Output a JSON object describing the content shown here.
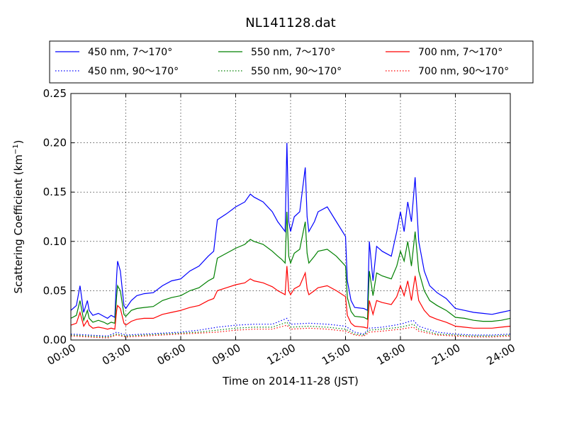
{
  "chart_data": {
    "type": "line",
    "title": "NL141128.dat",
    "xlabel": "Time on 2014-11-28 (JST)",
    "ylabel": "Scattering Coefficient (km",
    "ylabel_sup": "−1",
    "ylabel_close": ")",
    "xlim": [
      0,
      24
    ],
    "ylim": [
      0,
      0.25
    ],
    "grid": true,
    "legend_placement": "top",
    "x_ticks": [
      0,
      3,
      6,
      9,
      12,
      15,
      18,
      21,
      24
    ],
    "x_tick_labels": [
      "00:00",
      "03:00",
      "06:00",
      "09:00",
      "12:00",
      "15:00",
      "18:00",
      "21:00",
      "24:00"
    ],
    "y_ticks": [
      0,
      0.05,
      0.1,
      0.15,
      0.2,
      0.25
    ],
    "y_tick_labels": [
      "0.00",
      "0.05",
      "0.10",
      "0.15",
      "0.20",
      "0.25"
    ],
    "x_units": "hours",
    "series": [
      {
        "name": "450 nm, 7～170°",
        "color": "#0000ff",
        "style": "solid",
        "x": [
          0,
          0.3,
          0.5,
          0.7,
          0.9,
          1.0,
          1.2,
          1.5,
          1.8,
          2.0,
          2.2,
          2.4,
          2.5,
          2.55,
          2.7,
          2.9,
          3.0,
          3.3,
          3.6,
          4.0,
          4.5,
          5.0,
          5.5,
          6.0,
          6.5,
          7.0,
          7.5,
          7.8,
          8.0,
          8.5,
          9.0,
          9.5,
          9.8,
          10.0,
          10.5,
          11.0,
          11.3,
          11.5,
          11.7,
          11.8,
          11.9,
          12.0,
          12.2,
          12.5,
          12.8,
          12.9,
          13.0,
          13.3,
          13.5,
          14.0,
          14.5,
          15.0,
          15.1,
          15.3,
          15.5,
          16.0,
          16.2,
          16.3,
          16.5,
          16.7,
          17.0,
          17.5,
          17.8,
          18.0,
          18.2,
          18.4,
          18.6,
          18.8,
          19.0,
          19.3,
          19.6,
          20.0,
          20.5,
          21.0,
          21.5,
          22.0,
          22.5,
          23.0,
          23.5,
          24.0
        ],
        "values": [
          0.03,
          0.035,
          0.055,
          0.028,
          0.04,
          0.03,
          0.025,
          0.027,
          0.024,
          0.022,
          0.025,
          0.023,
          0.065,
          0.08,
          0.07,
          0.035,
          0.032,
          0.04,
          0.045,
          0.047,
          0.048,
          0.055,
          0.06,
          0.062,
          0.07,
          0.075,
          0.085,
          0.09,
          0.122,
          0.128,
          0.135,
          0.14,
          0.148,
          0.145,
          0.14,
          0.13,
          0.12,
          0.115,
          0.11,
          0.2,
          0.12,
          0.11,
          0.125,
          0.13,
          0.175,
          0.125,
          0.11,
          0.12,
          0.13,
          0.135,
          0.12,
          0.105,
          0.06,
          0.04,
          0.033,
          0.032,
          0.03,
          0.1,
          0.06,
          0.095,
          0.09,
          0.085,
          0.11,
          0.13,
          0.11,
          0.14,
          0.12,
          0.165,
          0.1,
          0.07,
          0.055,
          0.048,
          0.042,
          0.032,
          0.03,
          0.028,
          0.027,
          0.026,
          0.028,
          0.03
        ]
      },
      {
        "name": "450 nm, 90～170°",
        "color": "#0000ff",
        "style": "dotted",
        "x": [
          0,
          1,
          2,
          2.5,
          3,
          4,
          5,
          6,
          7,
          8,
          9,
          10,
          11,
          11.8,
          12,
          13,
          14,
          15,
          15.5,
          16,
          16.3,
          17,
          18,
          18.7,
          19,
          20,
          21,
          22,
          23,
          24
        ],
        "values": [
          0.006,
          0.005,
          0.004,
          0.008,
          0.005,
          0.006,
          0.007,
          0.008,
          0.01,
          0.013,
          0.015,
          0.016,
          0.016,
          0.022,
          0.016,
          0.017,
          0.016,
          0.014,
          0.008,
          0.006,
          0.012,
          0.013,
          0.016,
          0.02,
          0.014,
          0.008,
          0.006,
          0.005,
          0.005,
          0.006
        ]
      },
      {
        "name": "550 nm, 7～170°",
        "color": "#008000",
        "style": "solid",
        "x": [
          0,
          0.3,
          0.5,
          0.7,
          0.9,
          1.0,
          1.2,
          1.5,
          1.8,
          2.0,
          2.2,
          2.4,
          2.5,
          2.55,
          2.7,
          2.9,
          3.0,
          3.3,
          3.6,
          4.0,
          4.5,
          5.0,
          5.5,
          6.0,
          6.5,
          7.0,
          7.5,
          7.8,
          8.0,
          8.5,
          9.0,
          9.5,
          9.8,
          10.0,
          10.5,
          11.0,
          11.3,
          11.5,
          11.7,
          11.8,
          11.9,
          12.0,
          12.2,
          12.5,
          12.8,
          12.9,
          13.0,
          13.3,
          13.5,
          14.0,
          14.5,
          15.0,
          15.1,
          15.3,
          15.5,
          16.0,
          16.2,
          16.3,
          16.5,
          16.7,
          17.0,
          17.5,
          17.8,
          18.0,
          18.2,
          18.4,
          18.6,
          18.8,
          19.0,
          19.3,
          19.6,
          20.0,
          20.5,
          21.0,
          21.5,
          22.0,
          22.5,
          23.0,
          23.5,
          24.0
        ],
        "values": [
          0.022,
          0.025,
          0.04,
          0.02,
          0.03,
          0.022,
          0.018,
          0.02,
          0.018,
          0.016,
          0.018,
          0.017,
          0.045,
          0.055,
          0.05,
          0.026,
          0.024,
          0.03,
          0.032,
          0.033,
          0.034,
          0.04,
          0.043,
          0.045,
          0.05,
          0.053,
          0.06,
          0.063,
          0.083,
          0.088,
          0.093,
          0.097,
          0.102,
          0.1,
          0.097,
          0.09,
          0.085,
          0.082,
          0.078,
          0.13,
          0.085,
          0.078,
          0.088,
          0.092,
          0.12,
          0.088,
          0.078,
          0.085,
          0.09,
          0.092,
          0.085,
          0.075,
          0.043,
          0.029,
          0.024,
          0.023,
          0.021,
          0.07,
          0.045,
          0.068,
          0.065,
          0.062,
          0.075,
          0.09,
          0.08,
          0.1,
          0.075,
          0.11,
          0.07,
          0.05,
          0.04,
          0.035,
          0.03,
          0.023,
          0.022,
          0.02,
          0.019,
          0.019,
          0.02,
          0.022
        ]
      },
      {
        "name": "550 nm, 90～170°",
        "color": "#008000",
        "style": "dotted",
        "x": [
          0,
          1,
          2,
          2.5,
          3,
          4,
          5,
          6,
          7,
          8,
          9,
          10,
          11,
          11.8,
          12,
          13,
          14,
          15,
          15.5,
          16,
          16.3,
          17,
          18,
          18.7,
          19,
          20,
          21,
          22,
          23,
          24
        ],
        "values": [
          0.005,
          0.004,
          0.003,
          0.006,
          0.004,
          0.005,
          0.006,
          0.007,
          0.008,
          0.01,
          0.012,
          0.013,
          0.013,
          0.018,
          0.013,
          0.014,
          0.013,
          0.011,
          0.006,
          0.005,
          0.01,
          0.011,
          0.013,
          0.016,
          0.011,
          0.006,
          0.005,
          0.004,
          0.004,
          0.005
        ]
      },
      {
        "name": "700 nm, 7～170°",
        "color": "#ff0000",
        "style": "solid",
        "x": [
          0,
          0.3,
          0.5,
          0.7,
          0.9,
          1.0,
          1.2,
          1.5,
          1.8,
          2.0,
          2.2,
          2.4,
          2.5,
          2.55,
          2.7,
          2.9,
          3.0,
          3.3,
          3.6,
          4.0,
          4.5,
          5.0,
          5.5,
          6.0,
          6.5,
          7.0,
          7.5,
          7.8,
          8.0,
          8.5,
          9.0,
          9.5,
          9.8,
          10.0,
          10.5,
          11.0,
          11.3,
          11.5,
          11.7,
          11.8,
          11.9,
          12.0,
          12.2,
          12.5,
          12.8,
          12.9,
          13.0,
          13.3,
          13.5,
          14.0,
          14.5,
          15.0,
          15.1,
          15.3,
          15.5,
          16.0,
          16.2,
          16.3,
          16.5,
          16.7,
          17.0,
          17.5,
          17.8,
          18.0,
          18.2,
          18.4,
          18.6,
          18.8,
          19.0,
          19.3,
          19.6,
          20.0,
          20.5,
          21.0,
          21.5,
          22.0,
          22.5,
          23.0,
          23.5,
          24.0
        ],
        "values": [
          0.015,
          0.017,
          0.028,
          0.014,
          0.02,
          0.015,
          0.012,
          0.013,
          0.012,
          0.011,
          0.012,
          0.011,
          0.03,
          0.035,
          0.032,
          0.017,
          0.015,
          0.019,
          0.021,
          0.022,
          0.022,
          0.026,
          0.028,
          0.03,
          0.033,
          0.035,
          0.04,
          0.042,
          0.05,
          0.053,
          0.056,
          0.058,
          0.062,
          0.06,
          0.058,
          0.054,
          0.05,
          0.048,
          0.046,
          0.075,
          0.05,
          0.046,
          0.052,
          0.055,
          0.068,
          0.052,
          0.046,
          0.05,
          0.053,
          0.055,
          0.05,
          0.044,
          0.025,
          0.017,
          0.014,
          0.013,
          0.012,
          0.04,
          0.026,
          0.04,
          0.038,
          0.036,
          0.044,
          0.055,
          0.045,
          0.06,
          0.04,
          0.065,
          0.04,
          0.03,
          0.024,
          0.021,
          0.018,
          0.014,
          0.013,
          0.012,
          0.012,
          0.012,
          0.013,
          0.014
        ]
      },
      {
        "name": "700 nm, 90～170°",
        "color": "#ff0000",
        "style": "dotted",
        "x": [
          0,
          1,
          2,
          2.5,
          3,
          4,
          5,
          6,
          7,
          8,
          9,
          10,
          11,
          11.8,
          12,
          13,
          14,
          15,
          15.5,
          16,
          16.3,
          17,
          18,
          18.7,
          19,
          20,
          21,
          22,
          23,
          24
        ],
        "values": [
          0.004,
          0.003,
          0.002,
          0.005,
          0.003,
          0.004,
          0.005,
          0.006,
          0.007,
          0.008,
          0.01,
          0.011,
          0.011,
          0.015,
          0.011,
          0.012,
          0.011,
          0.009,
          0.005,
          0.004,
          0.008,
          0.009,
          0.011,
          0.013,
          0.009,
          0.005,
          0.004,
          0.003,
          0.003,
          0.004
        ]
      }
    ]
  }
}
